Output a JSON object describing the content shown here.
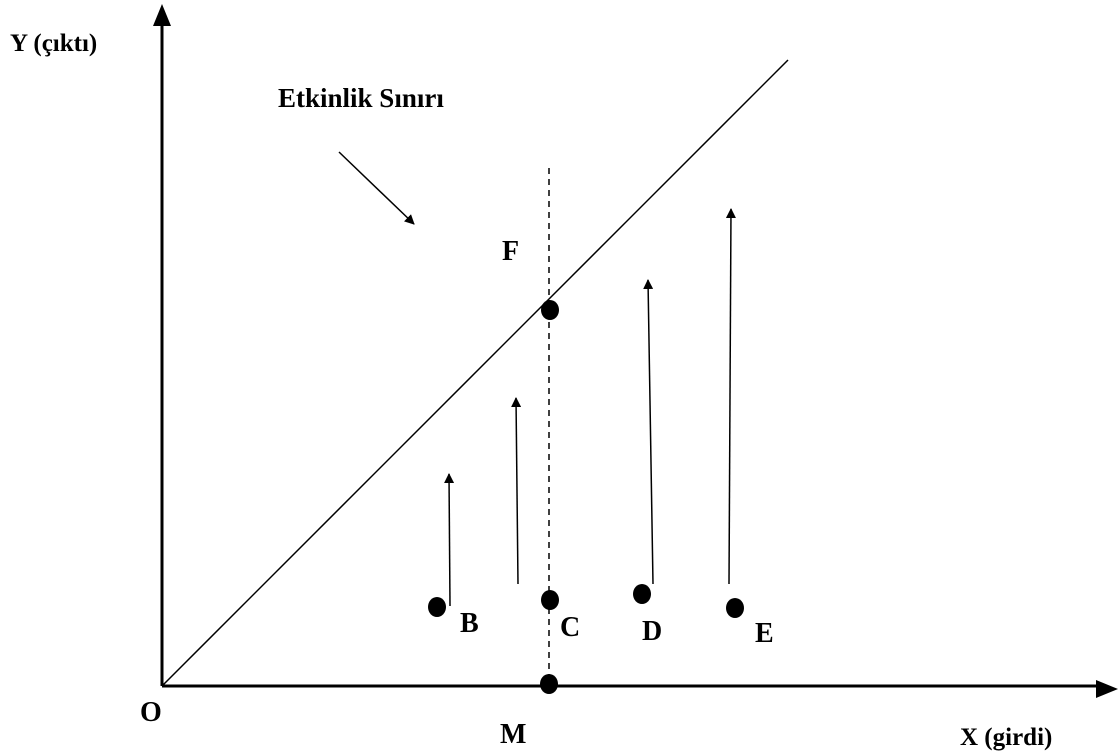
{
  "axes": {
    "y_label": "Y (çıktı)",
    "x_label": "X (girdi)",
    "origin_label": "O"
  },
  "frontier": {
    "label": "Etkinlik Sınırı"
  },
  "points": [
    {
      "id": "B",
      "label": "B"
    },
    {
      "id": "C",
      "label": "C"
    },
    {
      "id": "D",
      "label": "D"
    },
    {
      "id": "E",
      "label": "E"
    },
    {
      "id": "F",
      "label": "F"
    },
    {
      "id": "M",
      "label": "M"
    }
  ],
  "colors": {
    "ink": "#000000",
    "background": "#ffffff"
  }
}
